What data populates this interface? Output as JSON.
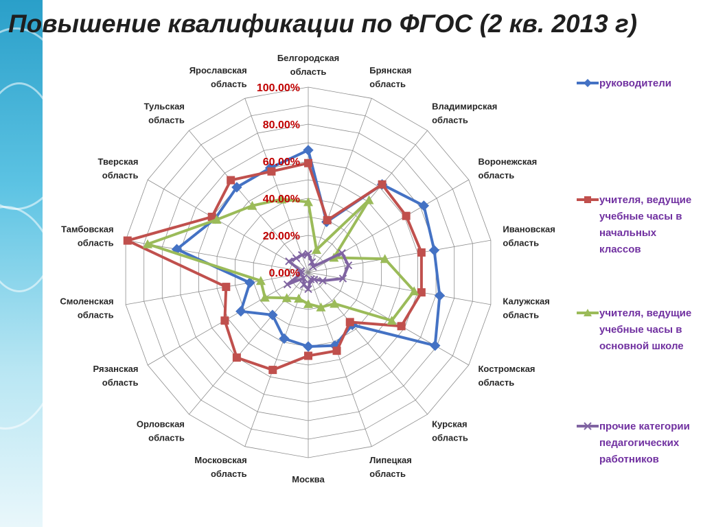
{
  "slide": {
    "title": "Повышение квалификации по ФГОС (2 кв. 2013 г)"
  },
  "chart_data": {
    "type": "radar",
    "title": "",
    "categories": [
      "Белгородская область",
      "Брянская область",
      "Владимирская область",
      "Воронежская область",
      "Ивановская область",
      "Калужская область",
      "Костромская область",
      "Курская область",
      "Липецкая область",
      "Москва",
      "Московская область",
      "Орловская область",
      "Рязанская область",
      "Смоленская область",
      "Тамбовская область",
      "Тверская область",
      "Тульская область",
      "Ярославская область"
    ],
    "category_lines": [
      [
        "Белгородская",
        "область"
      ],
      [
        "Брянская",
        "область"
      ],
      [
        "Владимирская",
        "область"
      ],
      [
        "Воронежская",
        "область"
      ],
      [
        "Ивановская",
        "область"
      ],
      [
        "Калужская",
        "область"
      ],
      [
        "Костромская",
        "область"
      ],
      [
        "Курская",
        "область"
      ],
      [
        "Липецкая",
        "область"
      ],
      [
        "Москва"
      ],
      [
        "Московская",
        "область"
      ],
      [
        "Орловская",
        "область"
      ],
      [
        "Рязанская",
        "область"
      ],
      [
        "Смоленская",
        "область"
      ],
      [
        "Тамбовская",
        "область"
      ],
      [
        "Тверская",
        "область"
      ],
      [
        "Тульская",
        "область"
      ],
      [
        "Ярославская",
        "область"
      ]
    ],
    "radial_ticks": [
      "0.00%",
      "20.00%",
      "40.00%",
      "60.00%",
      "80.00%",
      "100.00%"
    ],
    "rmax": 100,
    "grid": true,
    "legend_position": "right",
    "series": [
      {
        "name": "руководители",
        "color": "#4472c4",
        "marker": "diamond",
        "values": [
          66,
          29,
          62,
          72,
          69,
          72,
          79,
          37,
          42,
          40,
          38,
          30,
          42,
          32,
          72,
          58,
          60,
          60
        ]
      },
      {
        "name": "учителя, ведущие учебные часы в начальных классов",
        "color": "#c0504d",
        "marker": "square",
        "values": [
          59,
          30,
          62,
          61,
          62,
          62,
          58,
          35,
          45,
          45,
          56,
          60,
          52,
          45,
          99,
          60,
          65,
          58
        ]
      },
      {
        "name": "учителя, ведущие учебные часы в основной школе",
        "color": "#9bbb59",
        "marker": "triangle",
        "values": [
          38,
          13,
          51,
          16,
          42,
          58,
          52,
          22,
          20,
          17,
          15,
          18,
          27,
          26,
          88,
          57,
          47,
          42
        ]
      },
      {
        "name": "прочие категории педагогических работников",
        "color": "#8064a2",
        "marker": "x",
        "values": [
          10,
          6,
          4,
          21,
          22,
          19,
          9,
          5,
          4,
          9,
          7,
          4,
          13,
          4,
          4,
          12,
          10,
          10
        ]
      }
    ]
  }
}
